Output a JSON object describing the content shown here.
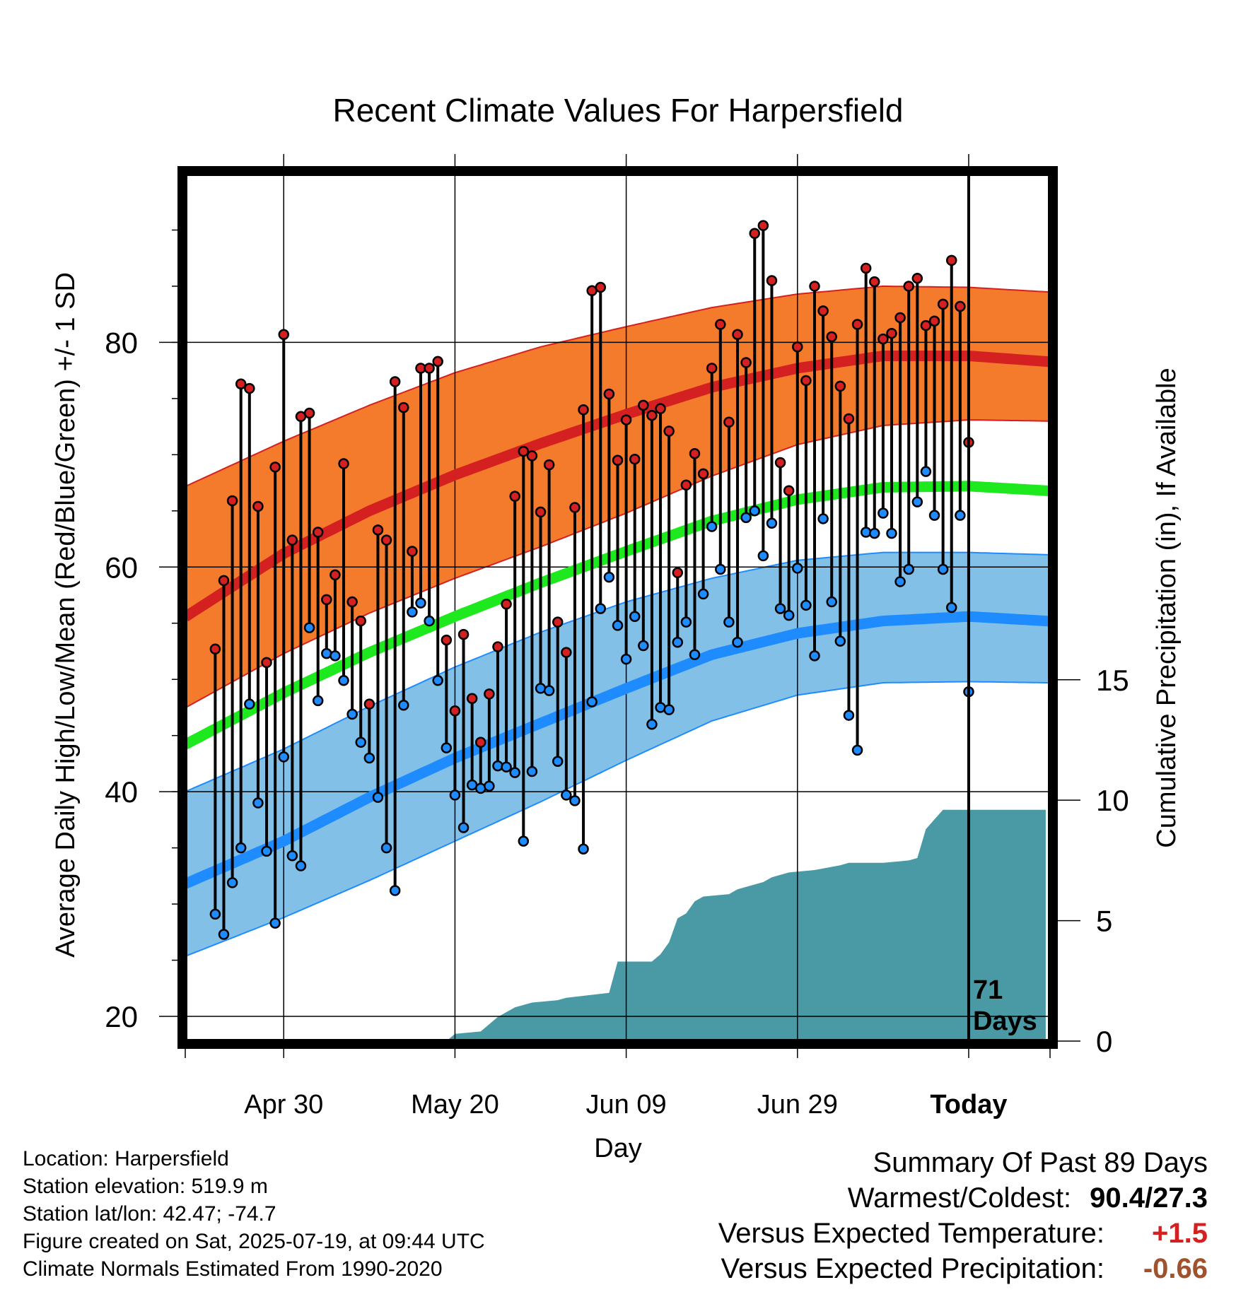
{
  "chart_data": {
    "type": "line",
    "title": "Recent Climate Values For Harpersfield",
    "xlabel": "Day",
    "ylabel": "Average Daily High/Low/Mean (Red/Blue/Green) +/- 1 SD",
    "y2label": "Cumulative Precipitation (in), If Available",
    "x_tick_labels": [
      "Apr 30",
      "May 20",
      "Jun 09",
      "Jun 29",
      "Today"
    ],
    "x_tick_days": [
      -80,
      -60,
      -40,
      -20,
      0
    ],
    "xlim": [
      -91.5,
      9.5
    ],
    "ylim": [
      17.8,
      95
    ],
    "y_ticks": [
      20,
      40,
      60,
      80
    ],
    "y2_ticks": [
      0,
      5,
      10,
      15
    ],
    "y2lim": [
      0,
      36
    ],
    "grid": true,
    "today_annotation": [
      "71",
      "Days"
    ],
    "colors": {
      "high_band": "#f47a2c",
      "high_line": "#d42020",
      "low_band": "#82c0e8",
      "low_line": "#1e8cff",
      "mean_line": "#1ee81e",
      "precip": "#4a9aa5",
      "high_point": "#d42020",
      "low_point": "#1e8cff"
    },
    "normals": {
      "day": [
        -90,
        -80,
        -70,
        -60,
        -50,
        -40,
        -30,
        -20,
        -10,
        0,
        9
      ],
      "high_mean": [
        56.3,
        61.2,
        65.0,
        68.2,
        71.0,
        73.6,
        76.0,
        77.7,
        78.8,
        78.8,
        78.3
      ],
      "high_sd_upper": [
        67.7,
        71.2,
        74.4,
        77.3,
        79.6,
        81.4,
        83.1,
        84.3,
        85.0,
        84.9,
        84.5
      ],
      "high_sd_lower": [
        48.1,
        52.3,
        55.9,
        59.0,
        61.8,
        64.8,
        68.1,
        70.9,
        72.6,
        73.1,
        73.0
      ],
      "mean": [
        44.8,
        48.8,
        52.4,
        55.6,
        58.6,
        61.4,
        64.1,
        66.0,
        67.1,
        67.2,
        66.8
      ],
      "low_mean": [
        32.3,
        35.6,
        39.5,
        43.0,
        46.1,
        49.2,
        52.2,
        54.1,
        55.2,
        55.6,
        55.2
      ],
      "low_sd_upper": [
        40.5,
        43.8,
        47.6,
        51.1,
        54.2,
        56.9,
        59.0,
        60.6,
        61.3,
        61.3,
        61.1
      ],
      "low_sd_lower": [
        25.8,
        28.8,
        32.1,
        35.6,
        39.1,
        42.8,
        46.3,
        48.6,
        49.7,
        49.8,
        49.7
      ]
    },
    "daily_high": [
      52.7,
      58.8,
      65.9,
      76.3,
      75.9,
      65.4,
      51.5,
      68.9,
      80.7,
      62.4,
      73.4,
      73.7,
      63.1,
      57.1,
      59.3,
      69.2,
      56.9,
      55.2,
      47.8,
      63.3,
      62.4,
      76.5,
      74.2,
      61.4,
      77.7,
      77.7,
      78.3,
      53.5,
      47.2,
      54.0,
      48.3,
      44.4,
      48.7,
      52.9,
      56.7,
      66.3,
      70.3,
      69.9,
      64.9,
      69.1,
      55.1,
      52.4,
      65.3,
      74.0,
      84.6,
      84.9,
      75.4,
      69.5,
      73.1,
      69.6,
      74.4,
      73.5,
      74.1,
      72.1,
      59.5,
      67.3,
      70.1,
      68.3,
      77.7,
      81.6,
      72.9,
      80.7,
      78.2,
      89.7,
      90.4,
      85.5,
      69.3,
      66.8,
      79.6,
      76.6,
      85.0,
      82.8,
      80.5,
      76.1,
      73.2,
      81.6,
      86.6,
      85.4,
      80.3,
      80.8,
      82.2,
      85.0,
      85.7,
      81.5,
      81.9,
      83.4,
      87.3,
      83.2,
      71.1
    ],
    "daily_low": [
      29.1,
      27.3,
      31.9,
      35.0,
      47.8,
      39.0,
      34.7,
      28.3,
      43.1,
      34.3,
      33.4,
      54.6,
      48.1,
      52.3,
      52.1,
      49.9,
      46.9,
      44.4,
      43.0,
      39.5,
      35.0,
      31.2,
      47.7,
      56.0,
      56.8,
      55.2,
      49.9,
      43.9,
      39.7,
      36.8,
      40.6,
      40.3,
      40.5,
      42.3,
      42.2,
      41.7,
      35.6,
      41.8,
      49.2,
      49.0,
      42.7,
      39.7,
      39.2,
      34.9,
      48.0,
      56.3,
      59.1,
      54.8,
      51.8,
      55.6,
      53.0,
      46.0,
      47.5,
      47.3,
      53.3,
      55.1,
      52.2,
      57.6,
      63.6,
      59.8,
      55.1,
      53.3,
      64.4,
      65.0,
      61.0,
      63.9,
      56.3,
      55.7,
      59.9,
      56.6,
      52.1,
      64.3,
      56.9,
      53.4,
      46.8,
      43.7,
      63.1,
      63.0,
      64.8,
      63.0,
      58.7,
      59.8,
      65.8,
      68.5,
      64.6,
      59.8,
      56.4,
      64.6,
      48.9
    ],
    "precip_cumulative": {
      "day": [
        -91,
        -61,
        -60,
        -57,
        -55,
        -53,
        -51,
        -48,
        -47,
        -42,
        -41,
        -37,
        -36,
        -35,
        -34,
        -33,
        -32,
        -31,
        -28,
        -27,
        -24,
        -23,
        -21,
        -18,
        -15,
        -14,
        -10,
        -7,
        -6,
        -5,
        -4,
        -3,
        9
      ],
      "value": [
        0,
        0,
        0.3,
        0.4,
        1.0,
        1.4,
        1.6,
        1.7,
        1.8,
        2.0,
        3.3,
        3.3,
        3.6,
        4.1,
        5.1,
        5.3,
        5.8,
        6.0,
        6.1,
        6.3,
        6.6,
        6.8,
        7.0,
        7.1,
        7.3,
        7.4,
        7.4,
        7.5,
        7.6,
        8.8,
        9.2,
        9.6,
        9.6
      ]
    }
  },
  "info": {
    "location": "Location: Harpersfield",
    "elevation": "Station elevation: 519.9 m",
    "latlon": "Station lat/lon: 42.47; -74.7",
    "created": "Figure created on Sat, 2025-07-19, at 09:44 UTC",
    "normals": "Climate Normals Estimated From 1990-2020"
  },
  "summary": {
    "heading": "Summary Of Past 89 Days",
    "warm_cold_label": "Warmest/Coldest:",
    "warm_cold_value": "90.4/27.3",
    "temp_label": "Versus Expected Temperature:",
    "temp_value": "+1.5",
    "temp_color": "#d42020",
    "precip_label": "Versus Expected Precipitation:",
    "precip_value": "-0.66",
    "precip_color": "#a0522d"
  }
}
